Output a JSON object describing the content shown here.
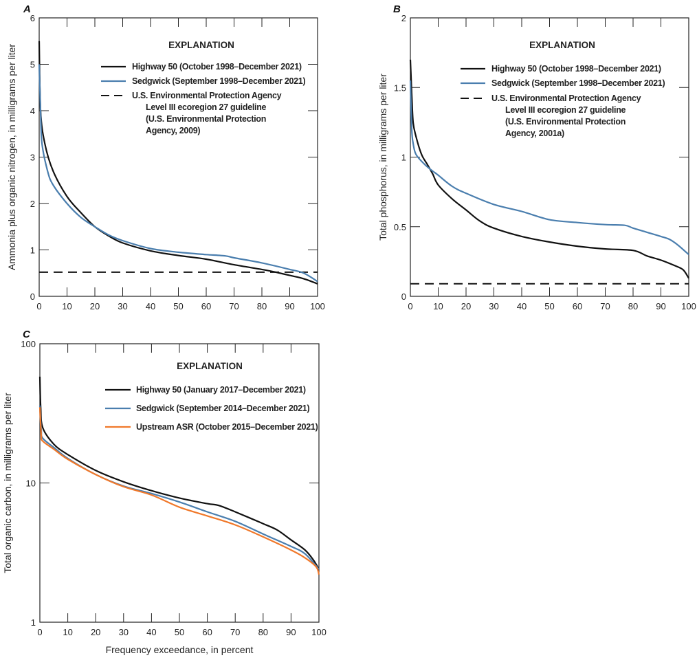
{
  "colors": {
    "highway50": "#111111",
    "sedgwick": "#4a7eae",
    "upstream_asr": "#f0782a",
    "guideline": "#111111"
  },
  "chart_data": [
    {
      "panel": "A",
      "type": "line",
      "ylabel": "Ammonia plus organic nitrogen, in milligrams per liter",
      "xlabel": "",
      "xlim": [
        0,
        100
      ],
      "ylim": [
        0,
        6
      ],
      "yscale": "linear",
      "xticks": [
        0,
        10,
        20,
        30,
        40,
        50,
        60,
        70,
        80,
        90,
        100
      ],
      "yticks": [
        0,
        1,
        2,
        3,
        4,
        5,
        6
      ],
      "grid": false,
      "legend_title": "EXPLANATION",
      "legend_position": "top-right",
      "series": [
        {
          "name": "Highway 50 (October 1998–December 2021)",
          "color_key": "highway50",
          "x": [
            0,
            0.5,
            2,
            5,
            10,
            15,
            20,
            25,
            30,
            40,
            50,
            60,
            70,
            80,
            85,
            90,
            95,
            100
          ],
          "y": [
            5.5,
            4.0,
            3.3,
            2.7,
            2.15,
            1.8,
            1.5,
            1.3,
            1.15,
            0.98,
            0.88,
            0.8,
            0.68,
            0.58,
            0.52,
            0.45,
            0.38,
            0.27
          ]
        },
        {
          "name": "Sedgwick (September 1998–December 2021)",
          "color_key": "sedgwick",
          "x": [
            0,
            0.5,
            1,
            3,
            5,
            10,
            15,
            20,
            25,
            30,
            40,
            50,
            60,
            67,
            70,
            80,
            90,
            95,
            100
          ],
          "y": [
            5.0,
            4.0,
            3.3,
            2.7,
            2.4,
            2.0,
            1.7,
            1.5,
            1.32,
            1.2,
            1.03,
            0.95,
            0.9,
            0.87,
            0.83,
            0.72,
            0.58,
            0.5,
            0.32
          ]
        }
      ],
      "guideline": {
        "name_lines": [
          "U.S. Environmental Protection Agency",
          "Level III ecoregion 27 guideline",
          "(U.S. Environmental Protection",
          "Agency, 2009)"
        ],
        "value": 0.52
      }
    },
    {
      "panel": "B",
      "type": "line",
      "ylabel": "Total phosphorus, in milligrams per liter",
      "xlabel": "",
      "xlim": [
        0,
        100
      ],
      "ylim": [
        0,
        2
      ],
      "yscale": "linear",
      "xticks": [
        0,
        10,
        20,
        30,
        40,
        50,
        60,
        70,
        80,
        90,
        100
      ],
      "yticks": [
        0,
        0.5,
        1,
        1.5,
        2
      ],
      "grid": false,
      "legend_title": "EXPLANATION",
      "legend_position": "top-right",
      "series": [
        {
          "name": "Highway 50 (October 1998–December 2021)",
          "color_key": "highway50",
          "x": [
            0,
            0.5,
            1,
            2,
            4,
            6,
            8,
            10,
            15,
            20,
            25,
            30,
            40,
            50,
            60,
            70,
            80,
            85,
            90,
            95,
            98,
            100
          ],
          "y": [
            1.7,
            1.45,
            1.25,
            1.15,
            1.02,
            0.95,
            0.88,
            0.8,
            0.7,
            0.62,
            0.54,
            0.49,
            0.43,
            0.39,
            0.36,
            0.34,
            0.33,
            0.29,
            0.26,
            0.22,
            0.19,
            0.13
          ]
        },
        {
          "name": "Sedgwick (September 1998–December 2021)",
          "color_key": "sedgwick",
          "x": [
            0,
            0.5,
            1,
            2,
            5,
            8,
            10,
            15,
            20,
            30,
            40,
            50,
            60,
            70,
            77,
            80,
            85,
            90,
            93,
            96,
            100
          ],
          "y": [
            1.55,
            1.2,
            1.1,
            1.02,
            0.95,
            0.9,
            0.87,
            0.79,
            0.74,
            0.66,
            0.61,
            0.55,
            0.53,
            0.515,
            0.51,
            0.49,
            0.46,
            0.43,
            0.41,
            0.37,
            0.3
          ]
        }
      ],
      "guideline": {
        "name_lines": [
          "U.S. Environmental Protection Agency",
          "Level III ecoregion 27 guideline",
          "(U.S. Environmental Protection",
          "Agency, 2001a)"
        ],
        "value": 0.09
      }
    },
    {
      "panel": "C",
      "type": "line",
      "ylabel": "Total organic carbon, in milligrams per liter",
      "xlabel": "Frequency exceedance, in percent",
      "xlim": [
        0,
        100
      ],
      "ylim": [
        1,
        100
      ],
      "yscale": "log",
      "xticks": [
        0,
        10,
        20,
        30,
        40,
        50,
        60,
        70,
        80,
        90,
        100
      ],
      "yticks": [
        1,
        10,
        100
      ],
      "grid": false,
      "legend_title": "EXPLANATION",
      "legend_position": "top-right",
      "series": [
        {
          "name": "Highway 50 (January 2017–December 2021)",
          "color_key": "highway50",
          "x": [
            0,
            0.3,
            1,
            5,
            10,
            20,
            30,
            40,
            50,
            60,
            64,
            70,
            80,
            85,
            90,
            95,
            98,
            100
          ],
          "y": [
            58,
            35,
            25,
            19,
            16,
            12.3,
            10.2,
            8.8,
            7.8,
            7.1,
            6.9,
            6.2,
            5.1,
            4.6,
            3.9,
            3.3,
            2.8,
            2.4
          ]
        },
        {
          "name": "Sedgwick (September 2014–December 2021)",
          "color_key": "sedgwick",
          "x": [
            0,
            0.5,
            1,
            5,
            10,
            20,
            30,
            40,
            50,
            60,
            70,
            80,
            90,
            95,
            100
          ],
          "y": [
            36,
            24,
            21,
            18,
            15,
            11.5,
            9.5,
            8.4,
            7.3,
            6.2,
            5.3,
            4.3,
            3.5,
            3.1,
            2.4
          ]
        },
        {
          "name": "Upstream ASR (October 2015–December 2021)",
          "color_key": "upstream_asr",
          "x": [
            0,
            0.5,
            1,
            5,
            10,
            20,
            30,
            40,
            50,
            60,
            70,
            80,
            90,
            95,
            99,
            100
          ],
          "y": [
            35,
            22,
            20,
            17.5,
            14.8,
            11.5,
            9.4,
            8.2,
            6.7,
            5.8,
            5.0,
            4.1,
            3.3,
            2.9,
            2.5,
            2.2
          ]
        }
      ]
    }
  ]
}
